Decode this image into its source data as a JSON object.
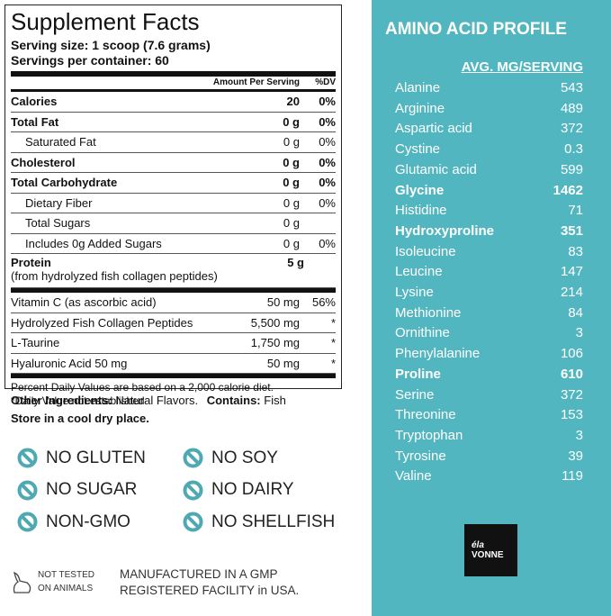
{
  "supplement_facts": {
    "title": "Supplement Facts",
    "serving_size": "Serving size: 1 scoop (7.6 grams)",
    "servings_per_container": "Servings per container: 60",
    "amount_header": "Amount Per Serving",
    "dv_header": "%DV",
    "rows": [
      {
        "name": "Calories",
        "amount": "20",
        "dv": "0%",
        "bold": true
      },
      {
        "name": "Total Fat",
        "amount": "0 g",
        "dv": "0%",
        "bold": true
      },
      {
        "name": "Saturated Fat",
        "amount": "0 g",
        "dv": "0%",
        "indent": true
      },
      {
        "name": "Cholesterol",
        "amount": "0 g",
        "dv": "0%",
        "bold": true
      },
      {
        "name": "Total Carbohydrate",
        "amount": "0 g",
        "dv": "0%",
        "bold": true
      },
      {
        "name": "Dietary Fiber",
        "amount": "0 g",
        "dv": "0%",
        "indent": true
      },
      {
        "name": "Total Sugars",
        "amount": "0 g",
        "indent": true
      },
      {
        "name": "Includes 0g Added Sugars",
        "amount": "0 g",
        "dv": "0%",
        "indent": true
      },
      {
        "name": "Protein",
        "note": "(from hydrolyzed fish collagen peptides)",
        "amount": "5 g",
        "bold": true
      }
    ],
    "ingredient_rows": [
      {
        "name": "Vitamin C (as ascorbic acid)",
        "amount": "50 mg",
        "dv": "56%"
      },
      {
        "name": "Hydrolyzed Fish Collagen Peptides",
        "amount": "5,500 mg",
        "dv": "*"
      },
      {
        "name": "L-Taurine",
        "amount": "1,750 mg",
        "dv": "*"
      },
      {
        "name": "Hyaluronic Acid 50 mg",
        "amount": "50 mg",
        "dv": "*"
      }
    ],
    "footnotes": [
      "Percent Daily Values are based on a 2,000 calorie diet.",
      "*Daily Value not established"
    ]
  },
  "other_ingredients": {
    "label": "Other Ingredients:",
    "text": "Natural Flavors.",
    "contains_label": "Contains:",
    "contains": "Fish"
  },
  "storage": "Store in a cool dry place.",
  "badges": [
    "NO GLUTEN",
    "NO SOY",
    "NO SUGAR",
    "NO DAIRY",
    "NON-GMO",
    "NO SHELLFISH"
  ],
  "cruelty_free": [
    "NOT TESTED",
    "ON ANIMALS"
  ],
  "manufacturing": [
    "MANUFACTURED IN A GMP",
    "REGISTERED FACILITY in USA."
  ],
  "amino_profile": {
    "title": "AMINO ACID PROFILE",
    "header": "AVG. MG/SERVING",
    "rows": [
      {
        "name": "Alanine",
        "value": "543"
      },
      {
        "name": "Arginine",
        "value": "489"
      },
      {
        "name": "Aspartic acid",
        "value": "372"
      },
      {
        "name": "Cystine",
        "value": "0.3"
      },
      {
        "name": "Glutamic acid",
        "value": "599"
      },
      {
        "name": "Glycine",
        "value": "1462",
        "bold": true
      },
      {
        "name": "Histidine",
        "value": "71"
      },
      {
        "name": "Hydroxyproline",
        "value": "351",
        "bold": true
      },
      {
        "name": "Isoleucine",
        "value": "83"
      },
      {
        "name": "Leucine",
        "value": "147"
      },
      {
        "name": "Lysine",
        "value": "214"
      },
      {
        "name": "Methionine",
        "value": "84"
      },
      {
        "name": "Ornithine",
        "value": "3"
      },
      {
        "name": "Phenylalanine",
        "value": "106"
      },
      {
        "name": "Proline",
        "value": "610",
        "bold": true
      },
      {
        "name": "Serine",
        "value": "372"
      },
      {
        "name": "Threonine",
        "value": "153"
      },
      {
        "name": "Tryptophan",
        "value": "3"
      },
      {
        "name": "Tyrosine",
        "value": "39"
      },
      {
        "name": "Valine",
        "value": "119"
      }
    ]
  },
  "brand": {
    "top": "éla",
    "bottom": "VONNE"
  }
}
